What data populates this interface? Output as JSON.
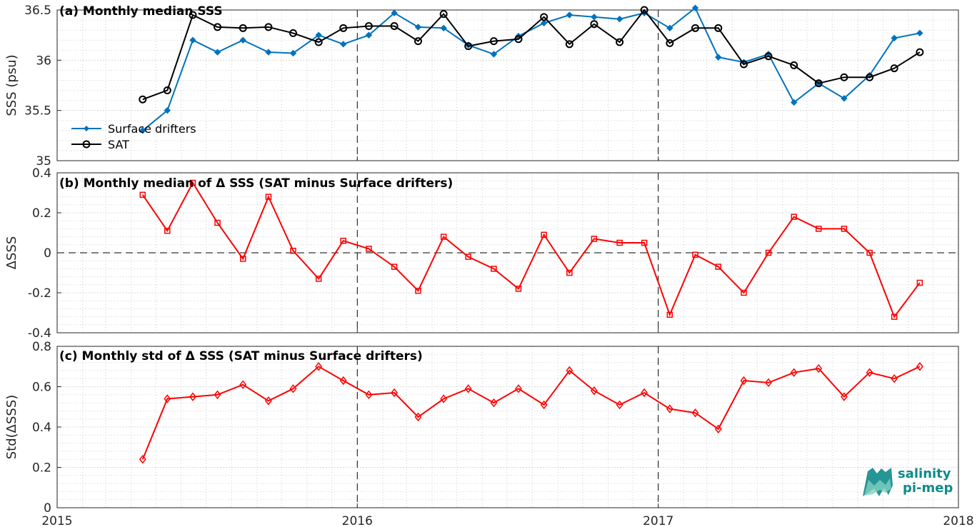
{
  "xaxis": {
    "range": [
      "2015-01-01",
      "2018-01-01"
    ],
    "ticks": [
      "2015",
      "2016",
      "2017",
      "2018"
    ]
  },
  "dates": [
    "2015-04-15",
    "2015-05-15",
    "2015-06-15",
    "2015-07-15",
    "2015-08-15",
    "2015-09-15",
    "2015-10-15",
    "2015-11-15",
    "2015-12-15",
    "2016-01-15",
    "2016-02-15",
    "2016-03-15",
    "2016-04-15",
    "2016-05-15",
    "2016-06-15",
    "2016-07-15",
    "2016-08-15",
    "2016-09-15",
    "2016-10-15",
    "2016-11-15",
    "2016-12-15",
    "2017-01-15",
    "2017-02-15",
    "2017-03-15",
    "2017-04-15",
    "2017-05-15",
    "2017-06-15",
    "2017-07-15",
    "2017-08-15",
    "2017-09-15",
    "2017-10-15",
    "2017-11-15"
  ],
  "colors": {
    "drifters": "#0072bd",
    "sat": "#000000",
    "delta": "#ff0000",
    "logo": "#0e8a8a"
  },
  "logo": {
    "line1": "salinity",
    "line2": "pi-mep"
  },
  "chart_data": [
    {
      "type": "line",
      "title": "(a) Monthly median SSS",
      "ylabel": "SSS (psu)",
      "ylim": [
        35,
        36.5
      ],
      "yticks": [
        "35",
        "35.5",
        "36",
        "36.5"
      ],
      "grid": true,
      "legend": "bottom-left",
      "series": [
        {
          "name": "Surface drifters",
          "marker": "diamond-filled",
          "values": [
            35.3,
            35.5,
            36.2,
            36.08,
            36.2,
            36.08,
            36.07,
            36.25,
            36.16,
            36.25,
            36.47,
            36.33,
            36.32,
            36.15,
            36.06,
            36.24,
            36.37,
            36.45,
            36.43,
            36.41,
            36.47,
            36.32,
            36.52,
            36.03,
            35.98,
            36.06,
            35.58,
            35.77,
            35.62,
            35.85,
            36.22,
            36.27
          ]
        },
        {
          "name": "SAT",
          "marker": "circle",
          "values": [
            35.61,
            35.7,
            36.45,
            36.33,
            36.32,
            36.33,
            36.27,
            36.18,
            36.32,
            36.34,
            36.34,
            36.19,
            36.46,
            36.14,
            36.19,
            36.21,
            36.43,
            36.16,
            36.36,
            36.18,
            36.5,
            36.17,
            36.32,
            36.32,
            35.96,
            36.04,
            35.95,
            35.77,
            35.83,
            35.83,
            35.92,
            36.08
          ]
        }
      ]
    },
    {
      "type": "line",
      "title": "(b) Monthly median of Δ SSS (SAT minus Surface drifters)",
      "ylabel": "ΔSSS",
      "ylim": [
        -0.4,
        0.4
      ],
      "yticks": [
        "-0.4",
        "-0.2",
        "0",
        "0.2",
        "0.4"
      ],
      "grid": true,
      "series": [
        {
          "name": "",
          "marker": "square",
          "values": [
            0.29,
            0.11,
            0.35,
            0.15,
            -0.03,
            0.28,
            0.01,
            -0.13,
            0.06,
            0.02,
            -0.07,
            -0.19,
            0.08,
            -0.02,
            -0.08,
            -0.18,
            0.09,
            -0.1,
            0.07,
            0.05,
            0.05,
            -0.31,
            -0.01,
            -0.07,
            -0.2,
            0.0,
            0.18,
            0.12,
            0.12,
            0.0,
            -0.32,
            -0.15
          ]
        }
      ]
    },
    {
      "type": "line",
      "title": "(c) Monthly std of Δ SSS (SAT minus Surface drifters)",
      "ylabel": "Std(ΔSSS)",
      "ylim": [
        0,
        0.8
      ],
      "yticks": [
        "0",
        "0.2",
        "0.4",
        "0.6",
        "0.8"
      ],
      "grid": true,
      "series": [
        {
          "name": "",
          "marker": "diamond",
          "values": [
            0.24,
            0.54,
            0.55,
            0.56,
            0.61,
            0.53,
            0.59,
            0.7,
            0.63,
            0.56,
            0.57,
            0.45,
            0.54,
            0.59,
            0.52,
            0.59,
            0.51,
            0.68,
            0.58,
            0.51,
            0.57,
            0.49,
            0.47,
            0.39,
            0.63,
            0.62,
            0.67,
            0.69,
            0.55,
            0.67,
            0.64,
            0.7
          ]
        }
      ]
    }
  ]
}
